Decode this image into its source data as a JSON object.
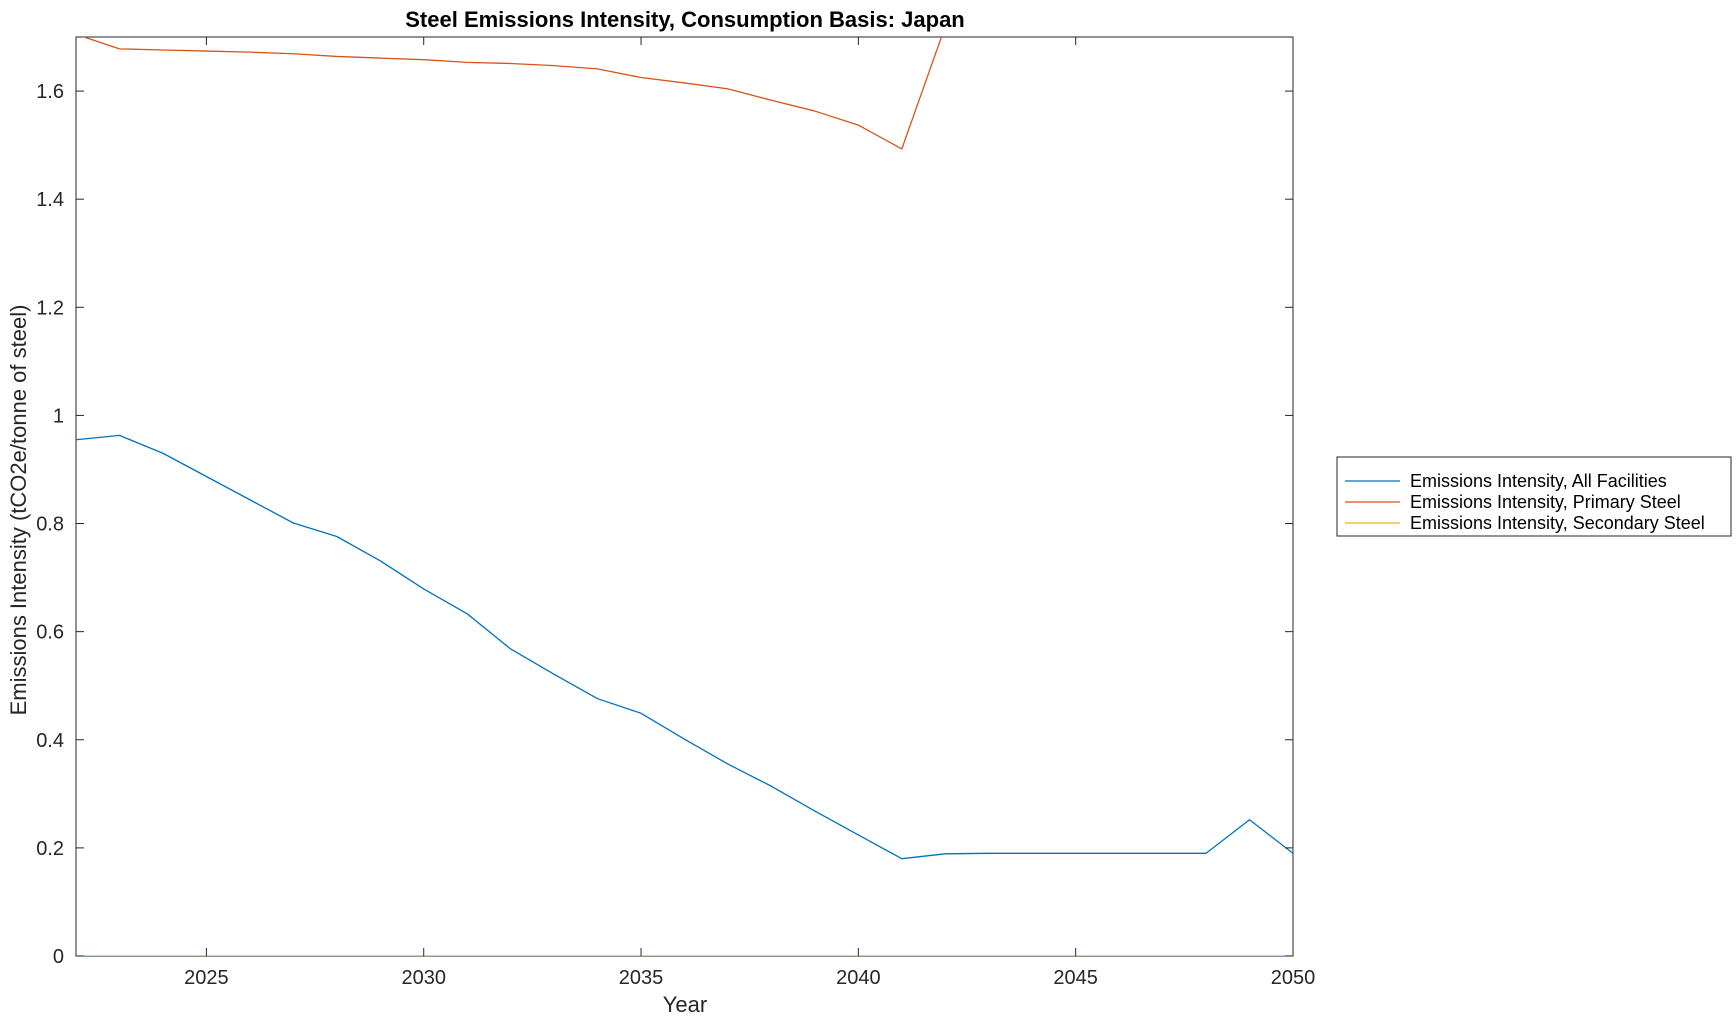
{
  "chart_data": {
    "type": "line",
    "title": "Steel Emissions Intensity, Consumption Basis: Japan",
    "xlabel": "Year",
    "ylabel": "Emissions Intensity (tCO2e/tonne of steel)",
    "xlim": [
      2022,
      2050
    ],
    "ylim": [
      0,
      1.7
    ],
    "xticks": [
      2025,
      2030,
      2035,
      2040,
      2045,
      2050
    ],
    "xtick_labels": [
      "2025",
      "2030",
      "2035",
      "2040",
      "2045",
      "2050"
    ],
    "yticks": [
      0,
      0.2,
      0.4,
      0.6,
      0.8,
      1,
      1.2,
      1.4,
      1.6
    ],
    "ytick_labels": [
      "0",
      "0.2",
      "0.4",
      "0.6",
      "0.8",
      "1",
      "1.2",
      "1.4",
      "1.6"
    ],
    "grid": false,
    "legend_position": "outside-right",
    "x": [
      2022,
      2023,
      2024,
      2025,
      2026,
      2027,
      2028,
      2029,
      2030,
      2031,
      2032,
      2033,
      2034,
      2035,
      2036,
      2037,
      2038,
      2039,
      2040,
      2041,
      2042,
      2043,
      2044,
      2045,
      2046,
      2047,
      2048,
      2049,
      2050
    ],
    "series": [
      {
        "name": "Emissions Intensity, All Facilities",
        "color": "#0072BD",
        "values": [
          0.955,
          0.963,
          0.93,
          0.887,
          0.844,
          0.801,
          0.776,
          0.731,
          0.679,
          0.633,
          0.568,
          0.521,
          0.476,
          0.449,
          0.401,
          0.355,
          0.314,
          0.268,
          0.224,
          0.18,
          0.189,
          0.19,
          0.19,
          0.19,
          0.19,
          0.19,
          0.19,
          0.252,
          0.19
        ]
      },
      {
        "name": "Emissions Intensity, Primary Steel",
        "color": "#D95319",
        "values": [
          1.705,
          1.678,
          1.676,
          1.674,
          1.672,
          1.669,
          1.664,
          1.661,
          1.658,
          1.653,
          1.651,
          1.647,
          1.641,
          1.625,
          1.615,
          1.604,
          1.583,
          1.563,
          1.537,
          1.493,
          1.72,
          null,
          null,
          null,
          null,
          null,
          null,
          null,
          null
        ]
      },
      {
        "name": "Emissions Intensity, Secondary Steel",
        "color": "#EDB120",
        "values": [
          0,
          0,
          0,
          0,
          0,
          0,
          0,
          0,
          0,
          0,
          0,
          0,
          0,
          0,
          0,
          0,
          0,
          0,
          0,
          0,
          0,
          0,
          0,
          0,
          0,
          0,
          0,
          0,
          0
        ]
      }
    ]
  }
}
